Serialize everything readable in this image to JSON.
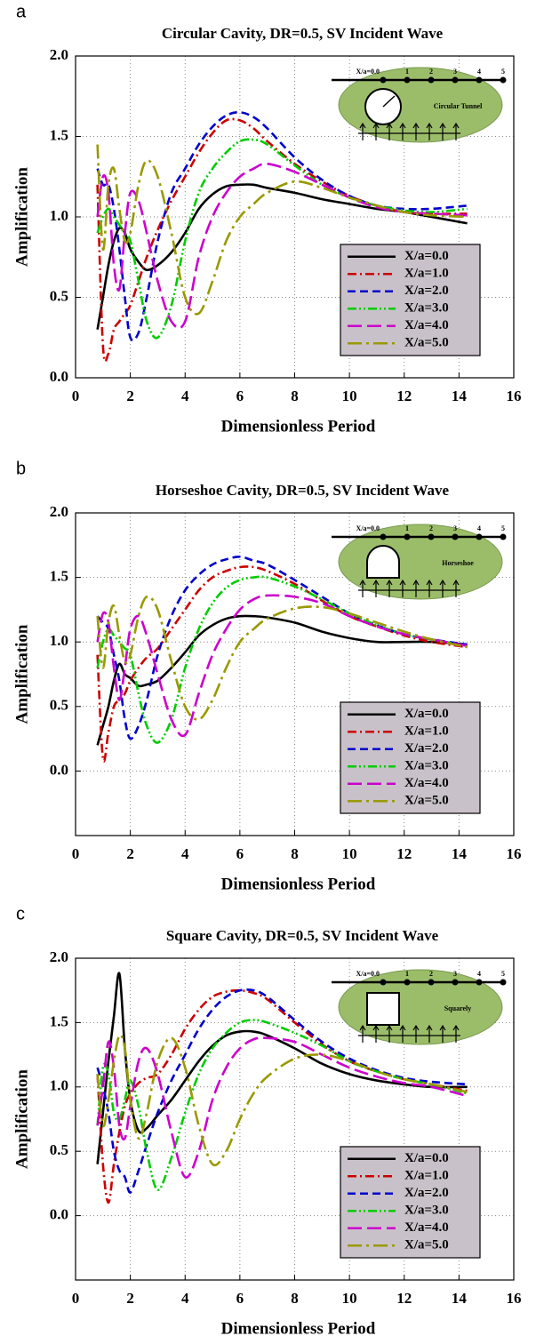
{
  "chart_data": [
    {
      "type": "line",
      "label": "a",
      "title": "Circular Cavity, DR=0.5, SV Incident Wave",
      "x_label": "Dimensionless Period",
      "y_label": "Amplification",
      "xlim": [
        0,
        16
      ],
      "xticks": [
        0,
        2,
        4,
        6,
        8,
        10,
        12,
        14,
        16
      ],
      "ylim": [
        0,
        2
      ],
      "yticks": [
        {
          "value": 0,
          "label": "0.0"
        },
        0.5,
        {
          "value": 1,
          "label": "1.0"
        },
        1.5,
        {
          "value": 2,
          "label": "2.0"
        }
      ],
      "grid": true,
      "legend": "lower right",
      "inset": {
        "ticks": [
          "X/a=0.0",
          "1",
          "2",
          "3",
          "4",
          "5"
        ],
        "caption": "Circular Tunnel"
      },
      "x": [
        0.8,
        1.0,
        1.2,
        1.4,
        1.6,
        1.8,
        2.0,
        2.3,
        2.6,
        3.0,
        3.5,
        4.0,
        4.5,
        5.0,
        5.5,
        6.0,
        6.5,
        7.0,
        8.0,
        9.0,
        10.0,
        11.0,
        12.0,
        13.0,
        14.3
      ],
      "series": [
        {
          "name": "X/a=0.0",
          "color": "#000000",
          "style": "solid",
          "values": [
            0.3,
            0.5,
            0.7,
            0.85,
            0.93,
            0.9,
            0.8,
            0.72,
            0.67,
            0.7,
            0.78,
            0.9,
            1.05,
            1.14,
            1.19,
            1.2,
            1.2,
            1.18,
            1.15,
            1.11,
            1.08,
            1.05,
            1.03,
            1.0,
            0.96
          ]
        },
        {
          "name": "X/a=1.0",
          "color": "#cc0000",
          "style": "dashdot",
          "values": [
            1.2,
            0.2,
            0.15,
            0.3,
            0.35,
            0.4,
            0.45,
            0.6,
            0.75,
            0.92,
            1.1,
            1.25,
            1.4,
            1.52,
            1.6,
            1.6,
            1.55,
            1.47,
            1.33,
            1.22,
            1.13,
            1.07,
            1.03,
            1.02,
            1.02
          ]
        },
        {
          "name": "X/a=2.0",
          "color": "#0000cc",
          "style": "dashed",
          "values": [
            1.3,
            1.2,
            1.2,
            1.05,
            0.8,
            0.5,
            0.25,
            0.28,
            0.5,
            0.85,
            1.15,
            1.3,
            1.45,
            1.56,
            1.63,
            1.65,
            1.62,
            1.55,
            1.37,
            1.23,
            1.13,
            1.07,
            1.05,
            1.05,
            1.07
          ]
        },
        {
          "name": "X/a=3.0",
          "color": "#00cc00",
          "style": "dashdotdot",
          "values": [
            0.9,
            1.0,
            1.05,
            1.0,
            0.95,
            0.9,
            0.85,
            0.6,
            0.35,
            0.25,
            0.45,
            0.85,
            1.15,
            1.3,
            1.4,
            1.47,
            1.48,
            1.45,
            1.32,
            1.2,
            1.12,
            1.07,
            1.04,
            1.03,
            1.05
          ]
        },
        {
          "name": "X/a=4.0",
          "color": "#cc00cc",
          "style": "longdash",
          "values": [
            1.0,
            1.25,
            1.15,
            0.7,
            0.55,
            0.9,
            1.15,
            1.1,
            0.9,
            0.6,
            0.35,
            0.35,
            0.75,
            1.0,
            1.15,
            1.25,
            1.3,
            1.33,
            1.28,
            1.2,
            1.12,
            1.06,
            1.03,
            1.02,
            1.01
          ]
        },
        {
          "name": "X/a=5.0",
          "color": "#999900",
          "style": "longdashdot",
          "values": [
            1.45,
            0.8,
            1.2,
            1.3,
            1.05,
            0.85,
            0.9,
            1.2,
            1.35,
            1.25,
            0.9,
            0.5,
            0.4,
            0.6,
            0.85,
            1.0,
            1.08,
            1.15,
            1.22,
            1.18,
            1.12,
            1.07,
            1.03,
            1.01,
            1.0
          ]
        }
      ]
    },
    {
      "type": "line",
      "label": "b",
      "title": "Horseshoe Cavity, DR=0.5, SV Incident Wave",
      "x_label": "Dimensionless Period",
      "y_label": "Amplification",
      "xlim": [
        0,
        16
      ],
      "xticks": [
        0,
        2,
        4,
        6,
        8,
        10,
        12,
        14,
        16
      ],
      "ylim": [
        -0.5,
        2
      ],
      "yticks": [
        {
          "value": 0,
          "label": "0.0"
        },
        0.5,
        {
          "value": 1,
          "label": "1.0"
        },
        1.5,
        {
          "value": 2,
          "label": "2.0"
        }
      ],
      "grid": true,
      "legend": "lower right",
      "inset": {
        "ticks": [
          "X/a=0.0",
          "1",
          "2",
          "3",
          "4",
          "5"
        ],
        "caption": "Horseshoe"
      },
      "x": [
        0.8,
        1.0,
        1.2,
        1.4,
        1.6,
        1.8,
        2.0,
        2.3,
        2.6,
        3.0,
        3.5,
        4.0,
        4.5,
        5.0,
        5.5,
        6.0,
        6.5,
        7.0,
        8.0,
        9.0,
        10.0,
        11.0,
        12.0,
        13.0,
        14.3
      ],
      "series": [
        {
          "name": "X/a=0.0",
          "color": "#000000",
          "style": "solid",
          "values": [
            0.2,
            0.35,
            0.5,
            0.7,
            0.83,
            0.75,
            0.72,
            0.66,
            0.67,
            0.7,
            0.8,
            0.92,
            1.05,
            1.13,
            1.18,
            1.2,
            1.2,
            1.19,
            1.15,
            1.08,
            1.03,
            1.0,
            1.0,
            1.0,
            0.98
          ]
        },
        {
          "name": "X/a=1.0",
          "color": "#cc0000",
          "style": "dashdot",
          "values": [
            0.9,
            0.1,
            0.3,
            0.5,
            0.55,
            0.6,
            0.7,
            0.8,
            0.88,
            0.95,
            1.1,
            1.25,
            1.4,
            1.5,
            1.55,
            1.58,
            1.58,
            1.55,
            1.45,
            1.32,
            1.2,
            1.12,
            1.05,
            1.0,
            0.96
          ]
        },
        {
          "name": "X/a=2.0",
          "color": "#0000cc",
          "style": "dashed",
          "values": [
            1.2,
            1.15,
            1.1,
            0.9,
            0.7,
            0.4,
            0.25,
            0.35,
            0.55,
            0.9,
            1.2,
            1.4,
            1.52,
            1.6,
            1.64,
            1.66,
            1.63,
            1.6,
            1.48,
            1.35,
            1.22,
            1.13,
            1.06,
            1.02,
            0.98
          ]
        },
        {
          "name": "X/a=3.0",
          "color": "#00cc00",
          "style": "dashdotdot",
          "values": [
            0.8,
            1.0,
            1.1,
            1.05,
            1.0,
            0.95,
            0.9,
            0.6,
            0.35,
            0.22,
            0.4,
            0.8,
            1.1,
            1.3,
            1.42,
            1.48,
            1.5,
            1.5,
            1.43,
            1.33,
            1.22,
            1.13,
            1.06,
            1.02,
            0.97
          ]
        },
        {
          "name": "X/a=4.0",
          "color": "#cc00cc",
          "style": "longdash",
          "values": [
            1.0,
            1.22,
            1.15,
            0.8,
            0.55,
            0.8,
            1.1,
            1.2,
            1.05,
            0.75,
            0.4,
            0.28,
            0.6,
            0.9,
            1.1,
            1.25,
            1.33,
            1.36,
            1.35,
            1.3,
            1.2,
            1.12,
            1.06,
            1.02,
            0.97
          ]
        },
        {
          "name": "X/a=5.0",
          "color": "#999900",
          "style": "longdashdot",
          "values": [
            1.2,
            0.8,
            1.15,
            1.28,
            1.05,
            0.85,
            0.9,
            1.2,
            1.35,
            1.25,
            0.85,
            0.5,
            0.4,
            0.55,
            0.8,
            1.0,
            1.1,
            1.18,
            1.26,
            1.27,
            1.22,
            1.15,
            1.08,
            1.02,
            0.96
          ]
        }
      ]
    },
    {
      "type": "line",
      "label": "c",
      "title": "Square Cavity, DR=0.5, SV Incident Wave",
      "x_label": "Dimensionless Period",
      "y_label": "Amplification",
      "xlim": [
        0,
        16
      ],
      "xticks": [
        0,
        2,
        4,
        6,
        8,
        10,
        12,
        14,
        16
      ],
      "ylim": [
        -0.5,
        2
      ],
      "yticks": [
        {
          "value": 0,
          "label": "0.0"
        },
        0.5,
        {
          "value": 1,
          "label": "1.0"
        },
        1.5,
        {
          "value": 2,
          "label": "2.0"
        }
      ],
      "grid": true,
      "legend": "lower right",
      "inset": {
        "ticks": [
          "X/a=0.0",
          "1",
          "2",
          "3",
          "4",
          "5"
        ],
        "caption": "Squarely"
      },
      "x": [
        0.8,
        1.0,
        1.2,
        1.4,
        1.6,
        1.8,
        2.0,
        2.3,
        2.6,
        3.0,
        3.5,
        4.0,
        4.5,
        5.0,
        5.5,
        6.0,
        6.5,
        7.0,
        8.0,
        9.0,
        10.0,
        11.0,
        12.0,
        13.0,
        14.3
      ],
      "series": [
        {
          "name": "X/a=0.0",
          "color": "#000000",
          "style": "solid",
          "values": [
            0.4,
            0.8,
            1.2,
            1.55,
            1.88,
            1.3,
            0.9,
            0.66,
            0.68,
            0.78,
            0.9,
            1.05,
            1.2,
            1.32,
            1.4,
            1.43,
            1.43,
            1.4,
            1.3,
            1.18,
            1.1,
            1.05,
            1.02,
            1.0,
            1.0
          ]
        },
        {
          "name": "X/a=1.0",
          "color": "#cc0000",
          "style": "dashdot",
          "values": [
            1.1,
            0.4,
            0.1,
            0.4,
            0.65,
            0.85,
            0.95,
            1.03,
            1.07,
            1.1,
            1.25,
            1.45,
            1.6,
            1.7,
            1.74,
            1.75,
            1.73,
            1.68,
            1.5,
            1.33,
            1.2,
            1.12,
            1.06,
            1.02,
            0.97
          ]
        },
        {
          "name": "X/a=2.0",
          "color": "#0000cc",
          "style": "dashed",
          "values": [
            1.15,
            1.0,
            0.8,
            0.5,
            0.35,
            0.3,
            0.18,
            0.35,
            0.55,
            0.8,
            1.05,
            1.25,
            1.45,
            1.6,
            1.7,
            1.75,
            1.75,
            1.7,
            1.52,
            1.35,
            1.22,
            1.13,
            1.07,
            1.04,
            1.02
          ]
        },
        {
          "name": "X/a=3.0",
          "color": "#00cc00",
          "style": "dashdotdot",
          "values": [
            0.7,
            1.15,
            1.1,
            0.8,
            0.75,
            0.9,
            1.05,
            0.85,
            0.5,
            0.2,
            0.45,
            0.8,
            1.1,
            1.3,
            1.42,
            1.5,
            1.52,
            1.5,
            1.42,
            1.32,
            1.2,
            1.12,
            1.06,
            1.02,
            0.95
          ]
        },
        {
          "name": "X/a=4.0",
          "color": "#cc00cc",
          "style": "longdash",
          "values": [
            0.7,
            1.0,
            1.35,
            1.15,
            0.7,
            0.6,
            0.85,
            1.2,
            1.3,
            1.1,
            0.65,
            0.3,
            0.5,
            0.9,
            1.15,
            1.3,
            1.37,
            1.38,
            1.35,
            1.25,
            1.15,
            1.08,
            1.03,
            1.0,
            0.93
          ]
        },
        {
          "name": "X/a=5.0",
          "color": "#999900",
          "style": "longdashdot",
          "values": [
            1.1,
            0.7,
            0.9,
            1.2,
            1.4,
            1.3,
            0.9,
            0.6,
            0.8,
            1.2,
            1.38,
            1.15,
            0.7,
            0.4,
            0.5,
            0.75,
            0.95,
            1.08,
            1.22,
            1.25,
            1.2,
            1.12,
            1.06,
            1.02,
            0.96
          ]
        }
      ]
    }
  ]
}
